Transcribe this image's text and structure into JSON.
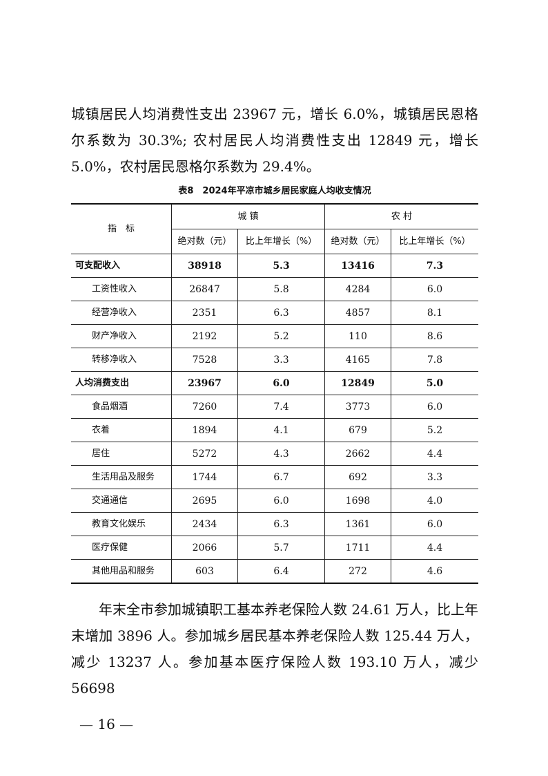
{
  "paragraph_top": "城镇居民人均消费性支出 23967 元，增长 6.0%，城镇居民恩格尔系数为 30.3%; 农村居民人均消费性支出 12849 元，增长 5.0%，农村居民恩格尔系数为 29.4%。",
  "table": {
    "caption": "表8　2024年平凉市城乡居民家庭人均收支情况",
    "header_indicator": "指　标",
    "group_urban": "城 镇",
    "group_rural": "农 村",
    "col_abs": "绝对数（元）",
    "col_growth": "比上年增长（%）",
    "rows": [
      {
        "label": "可支配收入",
        "bold": true,
        "urban_abs": "38918",
        "urban_growth": "5.3",
        "rural_abs": "13416",
        "rural_growth": "7.3"
      },
      {
        "label": "工资性收入",
        "urban_abs": "26847",
        "urban_growth": "5.8",
        "rural_abs": "4284",
        "rural_growth": "6.0"
      },
      {
        "label": "经营净收入",
        "urban_abs": "2351",
        "urban_growth": "6.3",
        "rural_abs": "4857",
        "rural_growth": "8.1"
      },
      {
        "label": "财产净收入",
        "urban_abs": "2192",
        "urban_growth": "5.2",
        "rural_abs": "110",
        "rural_growth": "8.6"
      },
      {
        "label": "转移净收入",
        "urban_abs": "7528",
        "urban_growth": "3.3",
        "rural_abs": "4165",
        "rural_growth": "7.8"
      },
      {
        "label": "人均消费支出",
        "bold": true,
        "urban_abs": "23967",
        "urban_growth": "6.0",
        "rural_abs": "12849",
        "rural_growth": "5.0"
      },
      {
        "label": "食品烟酒",
        "urban_abs": "7260",
        "urban_growth": "7.4",
        "rural_abs": "3773",
        "rural_growth": "6.0"
      },
      {
        "label": "衣着",
        "urban_abs": "1894",
        "urban_growth": "4.1",
        "rural_abs": "679",
        "rural_growth": "5.2"
      },
      {
        "label": "居住",
        "urban_abs": "5272",
        "urban_growth": "4.3",
        "rural_abs": "2662",
        "rural_growth": "4.4"
      },
      {
        "label": "生活用品及服务",
        "urban_abs": "1744",
        "urban_growth": "6.7",
        "rural_abs": "692",
        "rural_growth": "3.3"
      },
      {
        "label": "交通通信",
        "urban_abs": "2695",
        "urban_growth": "6.0",
        "rural_abs": "1698",
        "rural_growth": "4.0"
      },
      {
        "label": "教育文化娱乐",
        "urban_abs": "2434",
        "urban_growth": "6.3",
        "rural_abs": "1361",
        "rural_growth": "6.0"
      },
      {
        "label": "医疗保健",
        "urban_abs": "2066",
        "urban_growth": "5.7",
        "rural_abs": "1711",
        "rural_growth": "4.4"
      },
      {
        "label": "其他用品和服务",
        "urban_abs": "603",
        "urban_growth": "6.4",
        "rural_abs": "272",
        "rural_growth": "4.6"
      }
    ]
  },
  "paragraph_bottom": "年末全市参加城镇职工基本养老保险人数 24.61 万人，比上年末增加 3896 人。参加城乡居民基本养老保险人数 125.44 万人，减少 13237 人。参加基本医疗保险人数 193.10 万人，减少 56698",
  "page_number": "— 16 —"
}
